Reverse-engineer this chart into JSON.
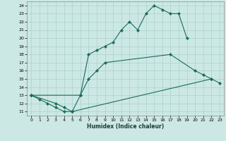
{
  "bg_color": "#cce8e5",
  "grid_color": "#aad0cc",
  "line_color": "#1a6b5a",
  "xlabel": "Humidex (Indice chaleur)",
  "xlim": [
    -0.5,
    23.5
  ],
  "ylim": [
    10.5,
    24.5
  ],
  "line1_x": [
    0,
    1,
    2,
    3,
    4,
    5,
    6,
    7,
    8,
    9,
    10,
    11,
    12,
    13,
    14,
    15,
    16,
    17,
    18,
    19
  ],
  "line1_y": [
    13,
    12.5,
    12,
    11.5,
    11,
    11,
    13,
    18,
    18.5,
    19,
    19.5,
    21,
    22,
    21,
    23,
    24,
    23.5,
    23,
    23,
    20
  ],
  "line2_x": [
    0,
    6,
    7,
    8,
    9,
    17,
    20,
    21,
    22
  ],
  "line2_y": [
    13,
    13,
    15,
    16,
    17,
    18,
    16,
    15.5,
    15
  ],
  "line3_x": [
    0,
    3,
    4,
    5,
    22,
    23
  ],
  "line3_y": [
    13,
    12,
    11.5,
    11,
    15,
    14.5
  ]
}
